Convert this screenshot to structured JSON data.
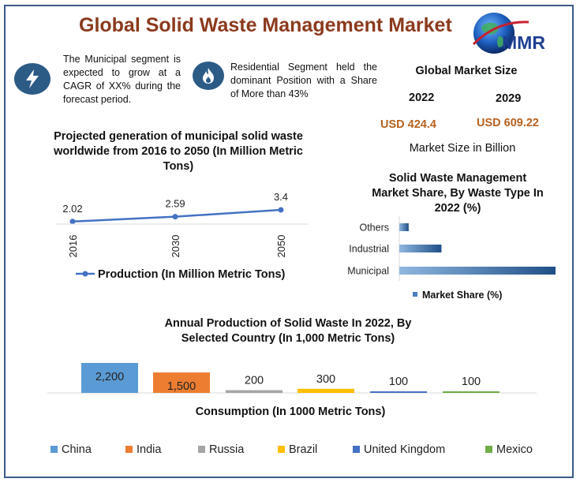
{
  "title": "Global Solid Waste Management Market",
  "logo_text": "MMR",
  "notes": [
    {
      "icon": "lightning-icon",
      "text": "The Municipal segment is expected to grow at a CAGR of XX% during the forecast period."
    },
    {
      "icon": "flame-icon",
      "text": "Residential Segment held the dominant Position with a Share of More than 43%"
    }
  ],
  "market_size": {
    "title": "Global Market Size",
    "years": [
      "2022",
      "2029"
    ],
    "values": [
      "USD 424.4",
      "USD 609.22"
    ],
    "unit": "Market Size in Billion"
  },
  "colors": {
    "brand_title": "#8b3a1d",
    "usd": "#b7611e",
    "line": "#4472c4",
    "bar_blue": "#4a7fc0"
  },
  "chart_data": [
    {
      "type": "line",
      "title": "Projected generation of municipal solid waste worldwide from 2016 to 2050 (In Million Metric Tons)",
      "x": [
        "2016",
        "2030",
        "2050"
      ],
      "series": [
        {
          "name": "Production (In Million Metric Tons)",
          "values": [
            2.02,
            2.59,
            3.4
          ],
          "labels": [
            "2.02",
            "2.59",
            "3.4"
          ]
        }
      ],
      "ylim": [
        0,
        4
      ],
      "legend": "bottom"
    },
    {
      "type": "bar",
      "orientation": "horizontal",
      "title": "Solid Waste Management Market Share, By Waste Type In 2022 (%)",
      "categories": [
        "Others",
        "Industrial",
        "Municipal"
      ],
      "series": [
        {
          "name": "Market Share (%)",
          "values": [
            6,
            27,
            100
          ]
        }
      ],
      "xlim": [
        0,
        100
      ],
      "legend": "bottom"
    },
    {
      "type": "bar",
      "title": "Annual Production of Solid Waste In 2022, By Selected Country (In 1,000 Metric Tons)",
      "categories": [
        "China",
        "India",
        "Russia",
        "Brazil",
        "United Kingdom",
        "Mexico"
      ],
      "values": [
        2200,
        1500,
        200,
        300,
        100,
        100
      ],
      "value_labels": [
        "2,200",
        "1,500",
        "200",
        "300",
        "100",
        "100"
      ],
      "colors": [
        "#5b9bd5",
        "#ed7d31",
        "#a5a5a5",
        "#ffc000",
        "#4472c4",
        "#70ad47"
      ],
      "xlabel": "Consumption (In 1000 Metric Tons)",
      "ylim": [
        0,
        2200
      ],
      "legend": "bottom"
    }
  ]
}
